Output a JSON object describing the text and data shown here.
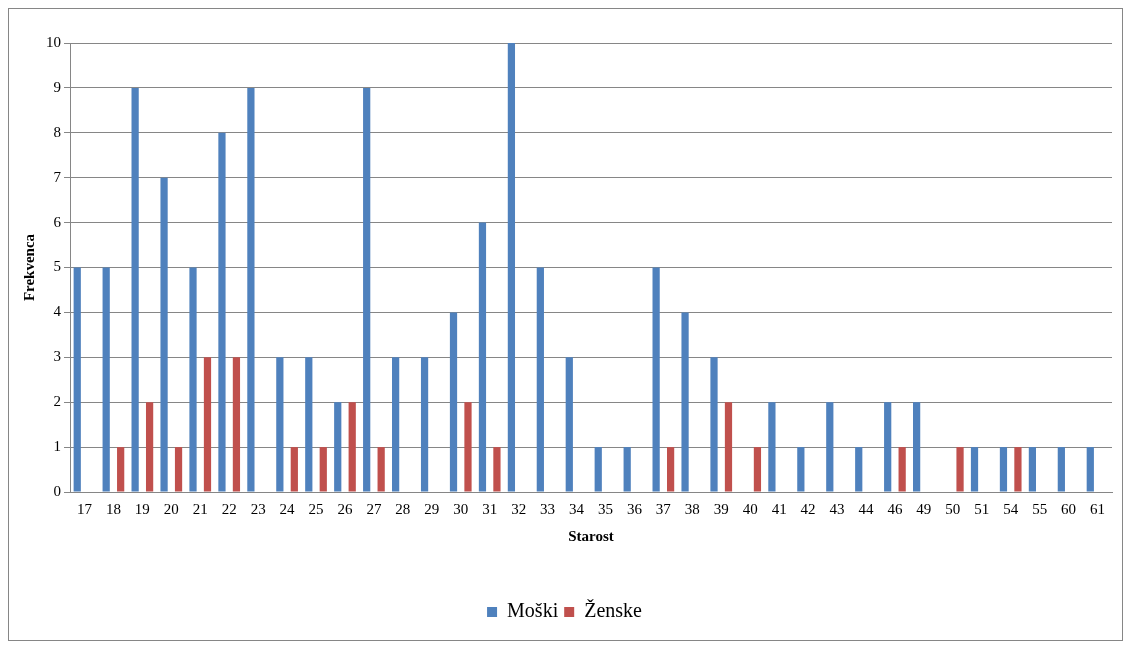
{
  "chart_data": {
    "type": "bar",
    "xlabel": "Starost",
    "ylabel": "Frekvenca",
    "categories": [
      "17",
      "18",
      "19",
      "20",
      "21",
      "22",
      "23",
      "24",
      "25",
      "26",
      "27",
      "28",
      "29",
      "30",
      "31",
      "32",
      "33",
      "34",
      "35",
      "36",
      "37",
      "38",
      "39",
      "40",
      "41",
      "42",
      "43",
      "44",
      "46",
      "49",
      "50",
      "51",
      "54",
      "55",
      "60",
      "61"
    ],
    "series": [
      {
        "name": "Moški",
        "color": "#4f81bd",
        "values": [
          5,
          5,
          9,
          7,
          5,
          8,
          9,
          3,
          3,
          2,
          9,
          3,
          3,
          4,
          6,
          10,
          5,
          3,
          1,
          1,
          5,
          4,
          3,
          0,
          2,
          1,
          2,
          1,
          2,
          2,
          0,
          1,
          1,
          1,
          1,
          1
        ]
      },
      {
        "name": "Ženske",
        "color": "#c0504d",
        "values": [
          0,
          1,
          2,
          1,
          3,
          3,
          0,
          1,
          1,
          2,
          1,
          0,
          0,
          2,
          1,
          0,
          0,
          0,
          0,
          0,
          1,
          0,
          2,
          1,
          0,
          0,
          0,
          0,
          1,
          0,
          1,
          0,
          1,
          0,
          0,
          0
        ]
      }
    ],
    "ylim": [
      0,
      10
    ],
    "yticks": [
      0,
      1,
      2,
      3,
      4,
      5,
      6,
      7,
      8,
      9,
      10
    ],
    "grid": "y",
    "legend": "bottom"
  }
}
